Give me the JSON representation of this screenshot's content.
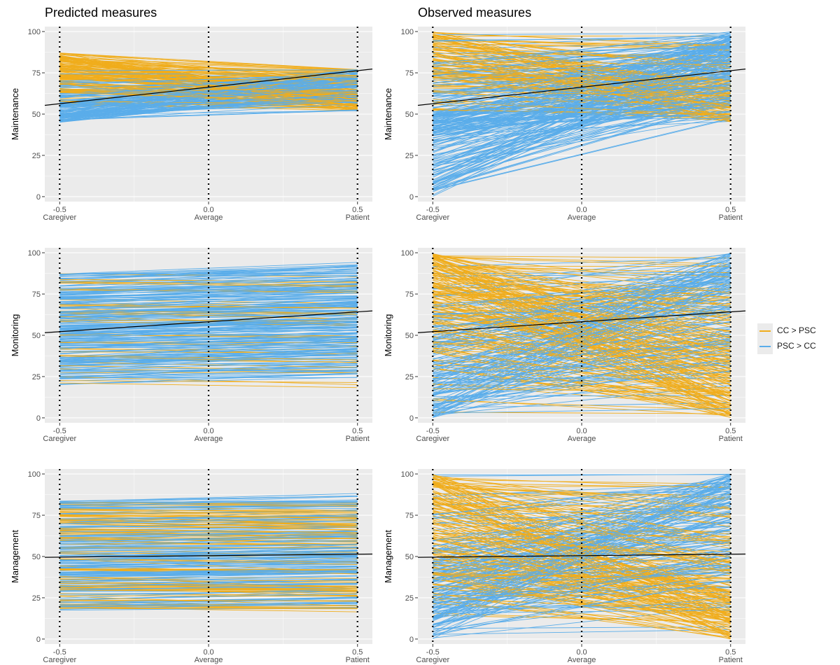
{
  "column_titles": [
    "Predicted measures",
    "Observed measures"
  ],
  "legend": [
    {
      "label": "CC > PSC",
      "color": "#F0AD1C"
    },
    {
      "label": "PSC > CC",
      "color": "#5AADEA"
    }
  ],
  "colors": {
    "cc_gt_psc": "#F0AD1C",
    "psc_gt_cc": "#5AADEA",
    "panel_bg": "#EBEBEB",
    "grid": "#FFFFFF",
    "ref_line": "#000000"
  },
  "chart_data": [
    {
      "type": "line",
      "column": "Predicted measures",
      "ylabel": "Maintenance",
      "x": [
        -0.5,
        0.0,
        0.5
      ],
      "xticklabels": [
        "-0.5\nCaregiver",
        "0.0\nAverage",
        "0.5\nPatient"
      ],
      "yticks": [
        0,
        25,
        50,
        75,
        100
      ],
      "ylim": [
        -3,
        103
      ],
      "xlim": [
        -0.55,
        0.55
      ],
      "ref_line": {
        "x": [
          -0.5,
          0.5
        ],
        "y": [
          56.3,
          76.3
        ]
      },
      "vlines": [
        -0.5,
        0.0,
        0.5
      ],
      "legend": "right",
      "grid": true
    },
    {
      "type": "line",
      "column": "Observed measures",
      "ylabel": "Maintenance",
      "x": [
        -0.5,
        0.0,
        0.5
      ],
      "xticklabels": [
        "-0.5\nCaregiver",
        "0.0\nAverage",
        "0.5\nPatient"
      ],
      "yticks": [
        0,
        25,
        50,
        75,
        100
      ],
      "ylim": [
        -3,
        103
      ],
      "xlim": [
        -0.55,
        0.55
      ],
      "ref_line": {
        "x": [
          -0.5,
          0.5
        ],
        "y": [
          56.3,
          76.3
        ]
      },
      "vlines": [
        -0.5,
        0.0,
        0.5
      ],
      "legend": "right",
      "grid": true
    },
    {
      "type": "line",
      "column": "Predicted measures",
      "ylabel": "Monitoring",
      "x": [
        -0.5,
        0.0,
        0.5
      ],
      "xticklabels": [
        "-0.5\nCaregiver",
        "0.0\nAverage",
        "0.5\nPatient"
      ],
      "yticks": [
        0,
        25,
        50,
        75,
        100
      ],
      "ylim": [
        -3,
        103
      ],
      "xlim": [
        -0.55,
        0.55
      ],
      "ref_line": {
        "x": [
          -0.5,
          0.5
        ],
        "y": [
          52.2,
          64.2
        ]
      },
      "vlines": [
        -0.5,
        0.0,
        0.5
      ],
      "legend": "right",
      "grid": true
    },
    {
      "type": "line",
      "column": "Observed measures",
      "ylabel": "Monitoring",
      "x": [
        -0.5,
        0.0,
        0.5
      ],
      "xticklabels": [
        "-0.5\nCaregiver",
        "0.0\nAverage",
        "0.5\nPatient"
      ],
      "yticks": [
        0,
        25,
        50,
        75,
        100
      ],
      "ylim": [
        -3,
        103
      ],
      "xlim": [
        -0.55,
        0.55
      ],
      "ref_line": {
        "x": [
          -0.5,
          0.5
        ],
        "y": [
          52.2,
          64.2
        ]
      },
      "vlines": [
        -0.5,
        0.0,
        0.5
      ],
      "legend": "right",
      "grid": true
    },
    {
      "type": "line",
      "column": "Predicted measures",
      "ylabel": "Management",
      "x": [
        -0.5,
        0.0,
        0.5
      ],
      "xticklabels": [
        "-0.5\nCaregiver",
        "0.0\nAverage",
        "0.5\nPatient"
      ],
      "yticks": [
        0,
        25,
        50,
        75,
        100
      ],
      "ylim": [
        -3,
        103
      ],
      "xlim": [
        -0.55,
        0.55
      ],
      "ref_line": {
        "x": [
          -0.5,
          0.5
        ],
        "y": [
          49.6,
          51.4
        ]
      },
      "vlines": [
        -0.5,
        0.0,
        0.5
      ],
      "legend": "right",
      "grid": true
    },
    {
      "type": "line",
      "column": "Observed measures",
      "ylabel": "Management",
      "x": [
        -0.5,
        0.0,
        0.5
      ],
      "xticklabels": [
        "-0.5\nCaregiver",
        "0.0\nAverage",
        "0.5\nPatient"
      ],
      "yticks": [
        0,
        25,
        50,
        75,
        100
      ],
      "ylim": [
        -3,
        103
      ],
      "xlim": [
        -0.55,
        0.55
      ],
      "ref_line": {
        "x": [
          -0.5,
          0.5
        ],
        "y": [
          49.6,
          51.4
        ]
      },
      "vlines": [
        -0.5,
        0.0,
        0.5
      ],
      "legend": "right",
      "grid": true
    }
  ]
}
